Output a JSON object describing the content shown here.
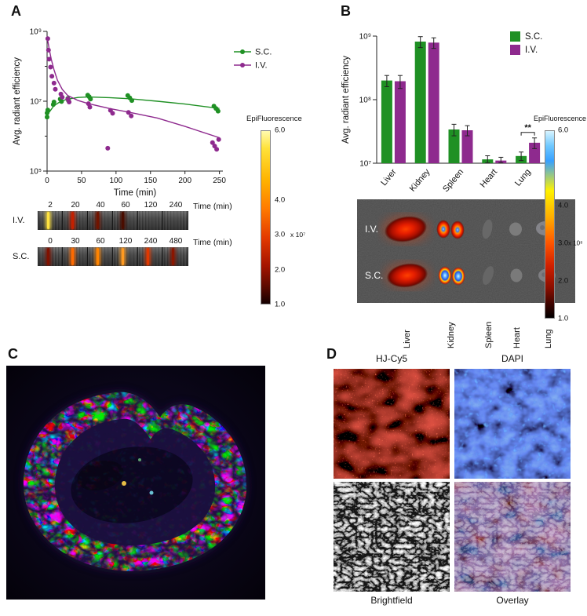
{
  "figure": {
    "panels": {
      "A": {
        "label": "A",
        "strips": {
          "rows": [
            {
              "label": "I.V.",
              "time_axis_label": "Time (min)",
              "times": [
                "2",
                "20",
                "40",
                "60",
                "120",
                "240"
              ],
              "streaks": [
                "#ffe240",
                "#c42000",
                "#701400",
                "#4a0d00",
                null,
                null
              ]
            },
            {
              "label": "S.C.",
              "time_axis_label": "Time (min)",
              "times": [
                "0",
                "30",
                "60",
                "120",
                "240",
                "480"
              ],
              "streaks": [
                "#801100",
                "#ff6a00",
                "#ff8400",
                "#ff9a20",
                "#e03800",
                "#8a1600"
              ]
            }
          ]
        },
        "colorbar": {
          "title": "EpiFluorescence",
          "ticks": [
            "6.0",
            "4.0",
            "3.0",
            "2.0",
            "1.0"
          ],
          "multiplier": "x 10⁷"
        }
      },
      "B": {
        "label": "B",
        "exvivo": {
          "row_labels": [
            "I.V.",
            "S.C."
          ],
          "organ_labels": [
            "Liver",
            "Kidney",
            "Spleen",
            "Heart",
            "Lung"
          ]
        },
        "colorbar": {
          "title": "EpiFluorescence",
          "ticks": [
            "6.0",
            "4.0",
            "3.0",
            "2.0",
            "1.0"
          ],
          "multiplier": "x 10⁸"
        }
      },
      "C": {
        "label": "C"
      },
      "D": {
        "label": "D",
        "top_titles": [
          "HJ-Cy5",
          "DAPI"
        ],
        "bottom_titles": [
          "Brightfield",
          "Overlay"
        ]
      }
    }
  },
  "chart_data": [
    {
      "id": "pk-curve",
      "type": "scatter",
      "title": "",
      "xlabel": "Time (min)",
      "ylabel": "Avg. radiant efficiency",
      "xlim": [
        0,
        255
      ],
      "xticks": [
        0,
        50,
        100,
        150,
        200,
        250
      ],
      "ylog": true,
      "ylim": [
        100000,
        1000000000
      ],
      "yticks": [
        {
          "v": 100000,
          "label": "10⁵"
        },
        {
          "v": 10000000,
          "label": "10⁷"
        },
        {
          "v": 1000000000,
          "label": "10⁹"
        }
      ],
      "yminor": [
        1000000,
        100000000
      ],
      "grid": false,
      "legend_position": "top-right",
      "series": [
        {
          "name": "S.C.",
          "color": "#1f9024",
          "points": [
            [
              0,
              3500000
            ],
            [
              0,
              4600000
            ],
            [
              1,
              5600000
            ],
            [
              9,
              8000000
            ],
            [
              10,
              9500000
            ],
            [
              19,
              11500000
            ],
            [
              21,
              9800000
            ],
            [
              30,
              12000000
            ],
            [
              31,
              10500000
            ],
            [
              59,
              15000000
            ],
            [
              61,
              13500000
            ],
            [
              63,
              11500000
            ],
            [
              117,
              14500000
            ],
            [
              120,
              12500000
            ],
            [
              123,
              10500000
            ],
            [
              242,
              7200000
            ],
            [
              245,
              6200000
            ],
            [
              248,
              5200000
            ]
          ],
          "fit": [
            [
              0,
              4000000
            ],
            [
              10,
              7500000
            ],
            [
              20,
              10000000
            ],
            [
              30,
              11500000
            ],
            [
              45,
              12800000
            ],
            [
              60,
              13200000
            ],
            [
              90,
              12700000
            ],
            [
              120,
              11800000
            ],
            [
              160,
              10000000
            ],
            [
              200,
              8300000
            ],
            [
              250,
              6200000
            ]
          ]
        },
        {
          "name": "I.V.",
          "color": "#8e2a8e",
          "points": [
            [
              1,
              620000000
            ],
            [
              2,
              290000000
            ],
            [
              3,
              160000000
            ],
            [
              5,
              95000000
            ],
            [
              7,
              52000000
            ],
            [
              10,
              33000000
            ],
            [
              12,
              22000000
            ],
            [
              20,
              16000000
            ],
            [
              22,
              13000000
            ],
            [
              30,
              11500000
            ],
            [
              32,
              9500000
            ],
            [
              60,
              8500000
            ],
            [
              62,
              6800000
            ],
            [
              88,
              450000
            ],
            [
              92,
              5500000
            ],
            [
              95,
              4500000
            ],
            [
              118,
              4800000
            ],
            [
              122,
              3800000
            ],
            [
              240,
              650000
            ],
            [
              243,
              520000
            ],
            [
              246,
              420000
            ],
            [
              249,
              800000
            ]
          ],
          "fit": [
            [
              0,
              700000000
            ],
            [
              3,
              320000000
            ],
            [
              6,
              160000000
            ],
            [
              10,
              80000000
            ],
            [
              15,
              40000000
            ],
            [
              22,
              22000000
            ],
            [
              30,
              14500000
            ],
            [
              45,
              10500000
            ],
            [
              60,
              8500000
            ],
            [
              90,
              6200000
            ],
            [
              120,
              4800000
            ],
            [
              160,
              3300000
            ],
            [
              200,
              1900000
            ],
            [
              250,
              900000
            ]
          ]
        }
      ]
    },
    {
      "id": "biodistribution",
      "type": "bar",
      "title": "",
      "ylabel": "Avg. radiant efficiency",
      "categories": [
        "Liver",
        "Kidney",
        "Spleen",
        "Heart",
        "Lung"
      ],
      "series": [
        {
          "name": "S.C.",
          "color": "#1f9024",
          "values": [
            200000000,
            820000000,
            34000000,
            11500000,
            13000000
          ],
          "errors": [
            40000000,
            160000000,
            7000000,
            1600000,
            2000000
          ]
        },
        {
          "name": "I.V.",
          "color": "#8e2a8e",
          "values": [
            195000000,
            790000000,
            33000000,
            11000000,
            21000000
          ],
          "errors": [
            45000000,
            150000000,
            6000000,
            1400000,
            4000000
          ]
        }
      ],
      "ylog": true,
      "ylim": [
        10000000,
        1000000000
      ],
      "yticks": [
        {
          "v": 10000000,
          "label": "10⁷"
        },
        {
          "v": 100000000,
          "label": "10⁸"
        },
        {
          "v": 1000000000,
          "label": "10⁹"
        }
      ],
      "legend_position": "top-right",
      "significance": [
        {
          "category": "Lung",
          "label": "**"
        }
      ]
    }
  ]
}
